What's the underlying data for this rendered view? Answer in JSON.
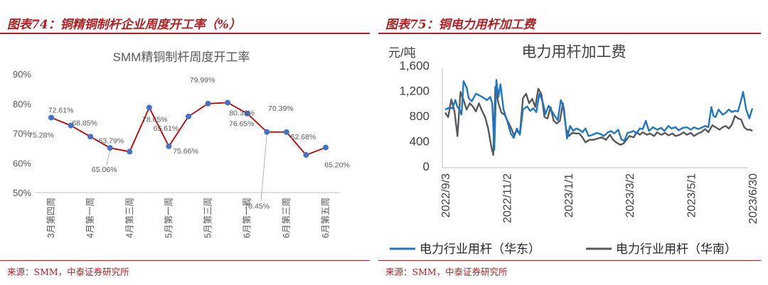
{
  "left": {
    "figure_title": "图表74：铜精铜制杆企业周度开工率（%）",
    "source": "来源：SMM，中泰证券研究所"
  },
  "right": {
    "figure_title": "图表75：铜电力用杆加工费",
    "source": "来源：SMM，中泰证券研究所"
  },
  "chart_data": [
    {
      "type": "line",
      "title": "SMM精铜制杆周度开工率",
      "xlabel": "",
      "ylabel": "",
      "ylim": [
        50,
        90
      ],
      "y_ticks": [
        "50%",
        "60%",
        "70%",
        "80%",
        "90%"
      ],
      "categories": [
        "3月第四周",
        "",
        "4月第一周",
        "",
        "4月第三周",
        "",
        "5月第一周",
        "",
        "5月第三周",
        "",
        "6月第一周",
        "",
        "6月第三周",
        "",
        "6月第五周"
      ],
      "series": [
        {
          "name": "",
          "color": "#c00000",
          "marker_color": "#4472c4",
          "values": [
            75.28,
            72.61,
            68.85,
            65.06,
            63.79,
            78.65,
            65.61,
            75.66,
            79.99,
            80.33,
            76.65,
            70.45,
            70.39,
            62.68,
            65.2
          ],
          "data_labels": [
            "75.28%",
            "72.61%",
            "68.85%",
            "65.06%",
            "63.79%",
            "78.65%",
            "65.61%",
            "75.66%",
            "79.99%",
            "80.33%",
            "76.65%",
            "70.45%",
            "70.39%",
            "62.68%",
            "65.20%"
          ]
        }
      ],
      "grid": false,
      "legend": "none"
    },
    {
      "type": "line",
      "title": "电力用杆加工费",
      "ylabel": "元/吨",
      "xlabel": "",
      "ylim": [
        0,
        1600
      ],
      "y_ticks": [
        "0",
        "400",
        "800",
        "1,200",
        "1,600"
      ],
      "x_ticks": [
        "2022/9/3",
        "2022/11/2",
        "2023/1/1",
        "2023/3/2",
        "2023/5/1",
        "2023/6/30"
      ],
      "x_range": [
        "2022-09-03",
        "2023-06-30"
      ],
      "series": [
        {
          "name": "电力行业用杆（华东）",
          "color": "#1f77c4",
          "points": [
            [
              "2022-09-03",
              900
            ],
            [
              "2022-09-07",
              930
            ],
            [
              "2022-09-10",
              920
            ],
            [
              "2022-09-13",
              1050
            ],
            [
              "2022-09-15",
              940
            ],
            [
              "2022-09-17",
              900
            ],
            [
              "2022-09-19",
              820
            ],
            [
              "2022-09-21",
              1350
            ],
            [
              "2022-09-24",
              1250
            ],
            [
              "2022-09-26",
              1080
            ],
            [
              "2022-09-29",
              1030
            ],
            [
              "2022-10-03",
              1150
            ],
            [
              "2022-10-07",
              1120
            ],
            [
              "2022-10-11",
              1080
            ],
            [
              "2022-10-14",
              1050
            ],
            [
              "2022-10-17",
              1100
            ],
            [
              "2022-10-19",
              1000
            ],
            [
              "2022-10-21",
              260
            ],
            [
              "2022-10-23",
              1370
            ],
            [
              "2022-10-25",
              1100
            ],
            [
              "2022-10-27",
              1300
            ],
            [
              "2022-10-30",
              900
            ],
            [
              "2022-11-03",
              700
            ],
            [
              "2022-11-06",
              520
            ],
            [
              "2022-11-09",
              450
            ],
            [
              "2022-11-12",
              600
            ],
            [
              "2022-11-15",
              500
            ],
            [
              "2022-11-18",
              900
            ],
            [
              "2022-11-22",
              950
            ],
            [
              "2022-11-25",
              880
            ],
            [
              "2022-11-28",
              920
            ],
            [
              "2022-12-01",
              860
            ],
            [
              "2022-12-04",
              1150
            ],
            [
              "2022-12-07",
              1040
            ],
            [
              "2022-12-10",
              830
            ],
            [
              "2022-12-13",
              960
            ],
            [
              "2022-12-16",
              880
            ],
            [
              "2022-12-19",
              800
            ],
            [
              "2022-12-22",
              730
            ],
            [
              "2022-12-25",
              1050
            ],
            [
              "2022-12-28",
              920
            ],
            [
              "2022-12-31",
              440
            ],
            [
              "2023-01-03",
              640
            ],
            [
              "2023-01-06",
              560
            ],
            [
              "2023-01-09",
              600
            ],
            [
              "2023-01-12",
              580
            ],
            [
              "2023-01-15",
              540
            ],
            [
              "2023-01-18",
              600
            ],
            [
              "2023-01-21",
              480
            ],
            [
              "2023-01-25",
              500
            ],
            [
              "2023-01-29",
              530
            ],
            [
              "2023-02-02",
              510
            ],
            [
              "2023-02-05",
              480
            ],
            [
              "2023-02-09",
              540
            ],
            [
              "2023-02-12",
              560
            ],
            [
              "2023-02-15",
              520
            ],
            [
              "2023-02-19",
              580
            ],
            [
              "2023-02-22",
              430
            ],
            [
              "2023-02-25",
              400
            ],
            [
              "2023-02-28",
              530
            ],
            [
              "2023-03-03",
              540
            ],
            [
              "2023-03-06",
              560
            ],
            [
              "2023-03-09",
              520
            ],
            [
              "2023-03-12",
              600
            ],
            [
              "2023-03-15",
              590
            ],
            [
              "2023-03-18",
              720
            ],
            [
              "2023-03-21",
              560
            ],
            [
              "2023-03-25",
              620
            ],
            [
              "2023-03-29",
              580
            ],
            [
              "2023-04-02",
              610
            ],
            [
              "2023-04-05",
              560
            ],
            [
              "2023-04-09",
              640
            ],
            [
              "2023-04-12",
              600
            ],
            [
              "2023-04-16",
              620
            ],
            [
              "2023-04-19",
              570
            ],
            [
              "2023-04-23",
              610
            ],
            [
              "2023-04-27",
              620
            ],
            [
              "2023-05-01",
              580
            ],
            [
              "2023-05-04",
              620
            ],
            [
              "2023-05-08",
              590
            ],
            [
              "2023-05-11",
              610
            ],
            [
              "2023-05-15",
              640
            ],
            [
              "2023-05-18",
              620
            ],
            [
              "2023-05-21",
              940
            ],
            [
              "2023-05-23",
              800
            ],
            [
              "2023-05-25",
              780
            ],
            [
              "2023-05-28",
              900
            ],
            [
              "2023-06-01",
              820
            ],
            [
              "2023-06-04",
              850
            ],
            [
              "2023-06-07",
              900
            ],
            [
              "2023-06-10",
              860
            ],
            [
              "2023-06-13",
              880
            ],
            [
              "2023-06-16",
              870
            ],
            [
              "2023-06-19",
              1050
            ],
            [
              "2023-06-21",
              1180
            ],
            [
              "2023-06-24",
              900
            ],
            [
              "2023-06-27",
              760
            ],
            [
              "2023-06-30",
              920
            ]
          ]
        },
        {
          "name": "电力行业用杆（华南）",
          "color": "#595959",
          "points": [
            [
              "2022-09-03",
              850
            ],
            [
              "2022-09-06",
              780
            ],
            [
              "2022-09-09",
              1060
            ],
            [
              "2022-09-12",
              880
            ],
            [
              "2022-09-15",
              480
            ],
            [
              "2022-09-18",
              1180
            ],
            [
              "2022-09-21",
              1050
            ],
            [
              "2022-09-24",
              900
            ],
            [
              "2022-09-27",
              1000
            ],
            [
              "2022-09-30",
              950
            ],
            [
              "2022-10-03",
              870
            ],
            [
              "2022-10-06",
              1000
            ],
            [
              "2022-10-09",
              880
            ],
            [
              "2022-10-12",
              780
            ],
            [
              "2022-10-15",
              600
            ],
            [
              "2022-10-18",
              320
            ],
            [
              "2022-10-20",
              180
            ],
            [
              "2022-10-22",
              1260
            ],
            [
              "2022-10-25",
              1000
            ],
            [
              "2022-10-28",
              850
            ],
            [
              "2022-10-31",
              820
            ],
            [
              "2022-11-03",
              720
            ],
            [
              "2022-11-06",
              620
            ],
            [
              "2022-11-09",
              500
            ],
            [
              "2022-11-12",
              560
            ],
            [
              "2022-11-15",
              520
            ],
            [
              "2022-11-18",
              1080
            ],
            [
              "2022-11-21",
              1150
            ],
            [
              "2022-11-24",
              1000
            ],
            [
              "2022-11-27",
              1070
            ],
            [
              "2022-11-30",
              940
            ],
            [
              "2022-12-03",
              1230
            ],
            [
              "2022-12-06",
              1140
            ],
            [
              "2022-12-09",
              780
            ],
            [
              "2022-12-12",
              760
            ],
            [
              "2022-12-15",
              940
            ],
            [
              "2022-12-18",
              720
            ],
            [
              "2022-12-21",
              680
            ],
            [
              "2022-12-24",
              720
            ],
            [
              "2022-12-27",
              1000
            ],
            [
              "2022-12-30",
              600
            ],
            [
              "2023-01-02",
              480
            ],
            [
              "2023-01-05",
              530
            ],
            [
              "2023-01-09",
              520
            ],
            [
              "2023-01-12",
              520
            ],
            [
              "2023-01-15",
              460
            ],
            [
              "2023-01-18",
              380
            ],
            [
              "2023-01-22",
              420
            ],
            [
              "2023-01-26",
              420
            ],
            [
              "2023-01-30",
              440
            ],
            [
              "2023-02-03",
              460
            ],
            [
              "2023-02-07",
              420
            ],
            [
              "2023-02-11",
              500
            ],
            [
              "2023-02-14",
              420
            ],
            [
              "2023-02-17",
              380
            ],
            [
              "2023-02-21",
              340
            ],
            [
              "2023-02-24",
              360
            ],
            [
              "2023-02-27",
              420
            ],
            [
              "2023-03-02",
              480
            ],
            [
              "2023-03-06",
              460
            ],
            [
              "2023-03-09",
              540
            ],
            [
              "2023-03-12",
              500
            ],
            [
              "2023-03-15",
              540
            ],
            [
              "2023-03-19",
              500
            ],
            [
              "2023-03-22",
              520
            ],
            [
              "2023-03-26",
              480
            ],
            [
              "2023-03-29",
              540
            ],
            [
              "2023-04-02",
              500
            ],
            [
              "2023-04-06",
              530
            ],
            [
              "2023-04-09",
              490
            ],
            [
              "2023-04-13",
              520
            ],
            [
              "2023-04-16",
              480
            ],
            [
              "2023-04-20",
              500
            ],
            [
              "2023-04-24",
              540
            ],
            [
              "2023-04-27",
              500
            ],
            [
              "2023-05-01",
              530
            ],
            [
              "2023-05-04",
              480
            ],
            [
              "2023-05-08",
              520
            ],
            [
              "2023-05-11",
              540
            ],
            [
              "2023-05-15",
              590
            ],
            [
              "2023-05-18",
              540
            ],
            [
              "2023-05-22",
              650
            ],
            [
              "2023-05-25",
              620
            ],
            [
              "2023-05-29",
              580
            ],
            [
              "2023-06-01",
              620
            ],
            [
              "2023-06-04",
              640
            ],
            [
              "2023-06-07",
              600
            ],
            [
              "2023-06-10",
              660
            ],
            [
              "2023-06-13",
              800
            ],
            [
              "2023-06-16",
              760
            ],
            [
              "2023-06-19",
              740
            ],
            [
              "2023-06-22",
              620
            ],
            [
              "2023-06-25",
              580
            ],
            [
              "2023-06-28",
              580
            ],
            [
              "2023-06-30",
              560
            ]
          ]
        }
      ],
      "grid": false,
      "legend": "bottom"
    }
  ]
}
